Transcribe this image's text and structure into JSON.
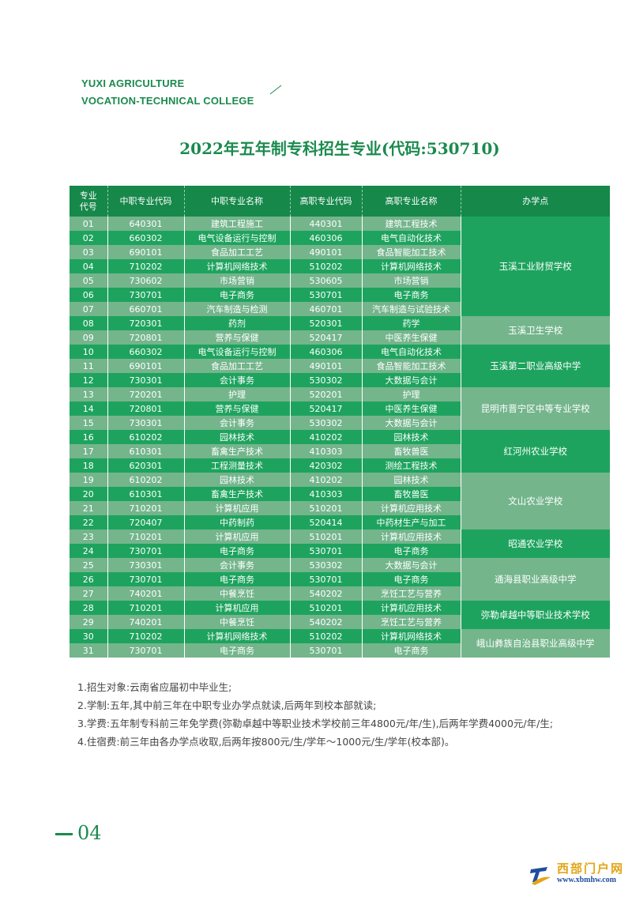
{
  "header": {
    "brand_line1": "YUXI AGRICULTURE",
    "brand_line2": "VOCATION-TECHNICAL COLLEGE"
  },
  "title": "2022年五年制专科招生专业(代码:530710)",
  "table": {
    "columns": [
      "专业代号",
      "中职专业代码",
      "中职专业名称",
      "高职专业代码",
      "高职专业名称",
      "办学点"
    ],
    "rows": [
      [
        "01",
        "640301",
        "建筑工程施工",
        "440301",
        "建筑工程技术"
      ],
      [
        "02",
        "660302",
        "电气设备运行与控制",
        "460306",
        "电气自动化技术"
      ],
      [
        "03",
        "690101",
        "食品加工工艺",
        "490101",
        "食品智能加工技术"
      ],
      [
        "04",
        "710202",
        "计算机网络技术",
        "510202",
        "计算机网络技术"
      ],
      [
        "05",
        "730602",
        "市场营销",
        "530605",
        "市场营销"
      ],
      [
        "06",
        "730701",
        "电子商务",
        "530701",
        "电子商务"
      ],
      [
        "07",
        "660701",
        "汽车制造与检测",
        "460701",
        "汽车制造与试验技术"
      ],
      [
        "08",
        "720301",
        "药剂",
        "520301",
        "药学"
      ],
      [
        "09",
        "720801",
        "营养与保健",
        "520417",
        "中医养生保健"
      ],
      [
        "10",
        "660302",
        "电气设备运行与控制",
        "460306",
        "电气自动化技术"
      ],
      [
        "11",
        "690101",
        "食品加工工艺",
        "490101",
        "食品智能加工技术"
      ],
      [
        "12",
        "730301",
        "会计事务",
        "530302",
        "大数据与会计"
      ],
      [
        "13",
        "720201",
        "护理",
        "520201",
        "护理"
      ],
      [
        "14",
        "720801",
        "营养与保健",
        "520417",
        "中医养生保健"
      ],
      [
        "15",
        "730301",
        "会计事务",
        "530302",
        "大数据与会计"
      ],
      [
        "16",
        "610202",
        "园林技术",
        "410202",
        "园林技术"
      ],
      [
        "17",
        "610301",
        "畜禽生产技术",
        "410303",
        "畜牧兽医"
      ],
      [
        "18",
        "620301",
        "工程测量技术",
        "420302",
        "测绘工程技术"
      ],
      [
        "19",
        "610202",
        "园林技术",
        "410202",
        "园林技术"
      ],
      [
        "20",
        "610301",
        "畜禽生产技术",
        "410303",
        "畜牧兽医"
      ],
      [
        "21",
        "710201",
        "计算机应用",
        "510201",
        "计算机应用技术"
      ],
      [
        "22",
        "720407",
        "中药制药",
        "520414",
        "中药材生产与加工"
      ],
      [
        "23",
        "710201",
        "计算机应用",
        "510201",
        "计算机应用技术"
      ],
      [
        "24",
        "730701",
        "电子商务",
        "530701",
        "电子商务"
      ],
      [
        "25",
        "730301",
        "会计事务",
        "530302",
        "大数据与会计"
      ],
      [
        "26",
        "730701",
        "电子商务",
        "530701",
        "电子商务"
      ],
      [
        "27",
        "740201",
        "中餐烹饪",
        "540202",
        "烹饪工艺与营养"
      ],
      [
        "28",
        "710201",
        "计算机应用",
        "510201",
        "计算机应用技术"
      ],
      [
        "29",
        "740201",
        "中餐烹饪",
        "540202",
        "烹饪工艺与营养"
      ],
      [
        "30",
        "710202",
        "计算机网络技术",
        "510202",
        "计算机网络技术"
      ],
      [
        "31",
        "730701",
        "电子商务",
        "530701",
        "电子商务"
      ]
    ],
    "schools": [
      {
        "name": "玉溪工业财贸学校",
        "rows": 7
      },
      {
        "name": "玉溪卫生学校",
        "rows": 2
      },
      {
        "name": "玉溪第二职业高级中学",
        "rows": 3
      },
      {
        "name": "昆明市晋宁区中等专业学校",
        "rows": 3
      },
      {
        "name": "红河州农业学校",
        "rows": 3
      },
      {
        "name": "文山农业学校",
        "rows": 4
      },
      {
        "name": "昭通农业学校",
        "rows": 2
      },
      {
        "name": "通海县职业高级中学",
        "rows": 3
      },
      {
        "name": "弥勒卓越中等职业技术学校",
        "rows": 2
      },
      {
        "name": "峨山彝族自治县职业高级中学",
        "rows": 2
      }
    ]
  },
  "notes": [
    "1.招生对象:云南省应届初中毕业生;",
    "2.学制:五年,其中前三年在中职专业办学点就读,后两年到校本部就读;",
    "3.学费:五年制专科前三年免学费(弥勒卓越中等职业技术学校前三年4800元/年/生),后两年学费4000元/年/生;",
    "4.住宿费:前三年由各办学点收取,后两年按800元/生/学年～1000元/生/学年(校本部)。"
  ],
  "page_number": "04",
  "watermark": {
    "name": "西部门户网",
    "url": "www.xbmhw.com"
  },
  "colors": {
    "brand_green": "#1b8a4e",
    "header": "#16884a",
    "row_dark": "#1ea35e",
    "row_light": "#74b58c"
  }
}
